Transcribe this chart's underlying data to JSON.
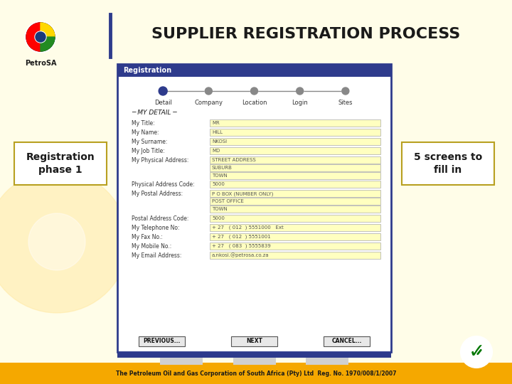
{
  "title": "SUPPLIER REGISTRATION PROCESS",
  "title_color": "#1a1a1a",
  "title_fontsize": 18,
  "bg_color": "#FFFDE8",
  "slide_bg": "#FFFDE8",
  "accent_bar_color": "#2E3B8C",
  "accent_line_color": "#2E3B8C",
  "left_box_text": "Registration\nphase 1",
  "left_box_border": "#B8A020",
  "right_box_text": "5 screens to\nfill in",
  "right_box_border": "#B8A020",
  "footer_bg": "#F5A800",
  "footer_text": "The Petroleum Oil and Gas Corporation of South Africa (Pty) Ltd  Reg. No. 1970/008/1/2007",
  "footer_text_color": "#1a1a1a",
  "petro_sa_label": "PetroSA",
  "reg_panel_bg": "#FFFFFF",
  "reg_panel_border": "#2E3B8C",
  "reg_panel_title": "Registration",
  "reg_panel_title_bg": "#2E3B8C",
  "reg_panel_title_color": "#FFFFFF",
  "form_steps": [
    "Detail",
    "Company",
    "Location",
    "Login",
    "Sites"
  ],
  "form_fields": [
    {
      "label": "My Title:",
      "value": "MR"
    },
    {
      "label": "My Name:",
      "value": "HILL"
    },
    {
      "label": "My Surname:",
      "value": "NKOSI"
    },
    {
      "label": "My Job Title:",
      "value": "MD"
    },
    {
      "label": "My Physical Address:",
      "values": [
        "STREET ADDRESS",
        "SUBURB",
        "TOWN"
      ]
    },
    {
      "label": "Physical Address Code:",
      "value": "5000"
    },
    {
      "label": "My Postal Address:",
      "values": [
        "P O BOX (NUMBER ONLY)",
        "POST OFFICE",
        "TOWN"
      ]
    },
    {
      "label": "Postal Address Code:",
      "value": "5000"
    },
    {
      "label": "My Telephone No:",
      "value": "+ 27   ( 012  ) 5551000   Ext"
    },
    {
      "label": "My Fax No.:",
      "value": "+ 27   ( 012  ) 5551001"
    },
    {
      "label": "My Mobile No.:",
      "value": "+ 27   ( 083  ) 5555839"
    },
    {
      "label": "My Email Address:",
      "value": "a.nkosi.@petrosa.co.za"
    }
  ],
  "nav_buttons": [
    "PREVIOUS...",
    "NEXT",
    "CANCEL..."
  ],
  "section_title": "MY DETAIL",
  "vertical_bar_color": "#2E3B8C",
  "nav_line_color": "#888888",
  "active_step_color": "#2E3B8C",
  "inactive_step_color": "#888888"
}
